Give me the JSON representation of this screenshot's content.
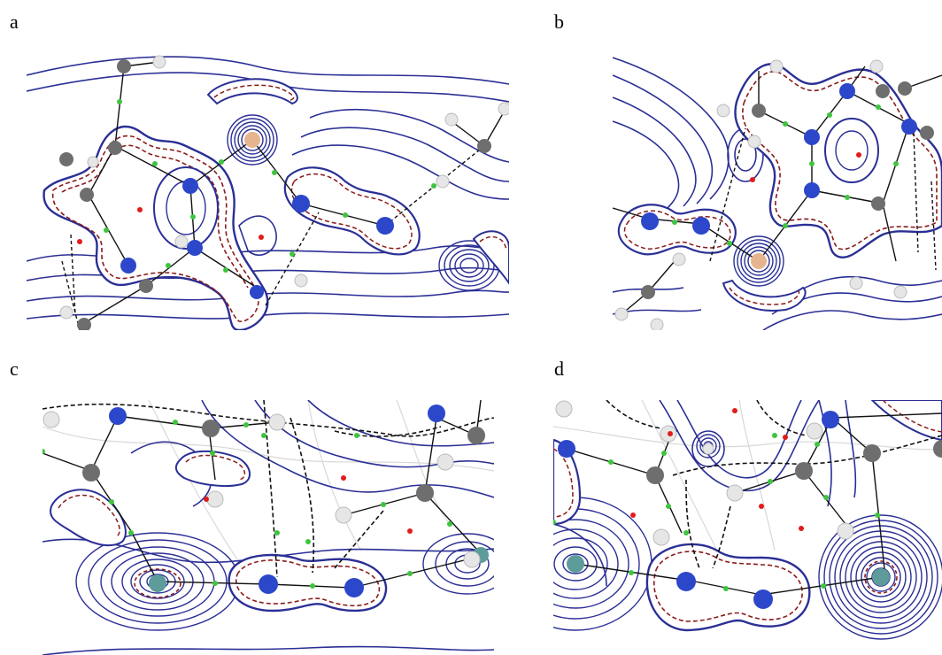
{
  "panels": [
    {
      "label": "a"
    },
    {
      "label": "b"
    },
    {
      "label": "c"
    },
    {
      "label": "d"
    }
  ],
  "colors": {
    "positive_contour": "#2b2f95",
    "negative_contour": "#8b1a1a",
    "bond_path": "#111111",
    "bond_critical_point": "#3fc43f",
    "ring_critical_point": "#e21b1b",
    "carbon_atom": "#6e6e6e",
    "hydrogen_atom": "#e6e6e6",
    "nitrogen_atom": "#2c47c9",
    "halogen_atom_ab": "#e6b58f",
    "halogen_atom_cd": "#5e9b9b",
    "weak_path": "#cfcfcf"
  },
  "icons": [
    "carbon-atom-icon",
    "hydrogen-atom-icon",
    "nitrogen-atom-icon",
    "halogen-atom-icon",
    "bond-critical-point-icon",
    "ring-critical-point-icon"
  ]
}
